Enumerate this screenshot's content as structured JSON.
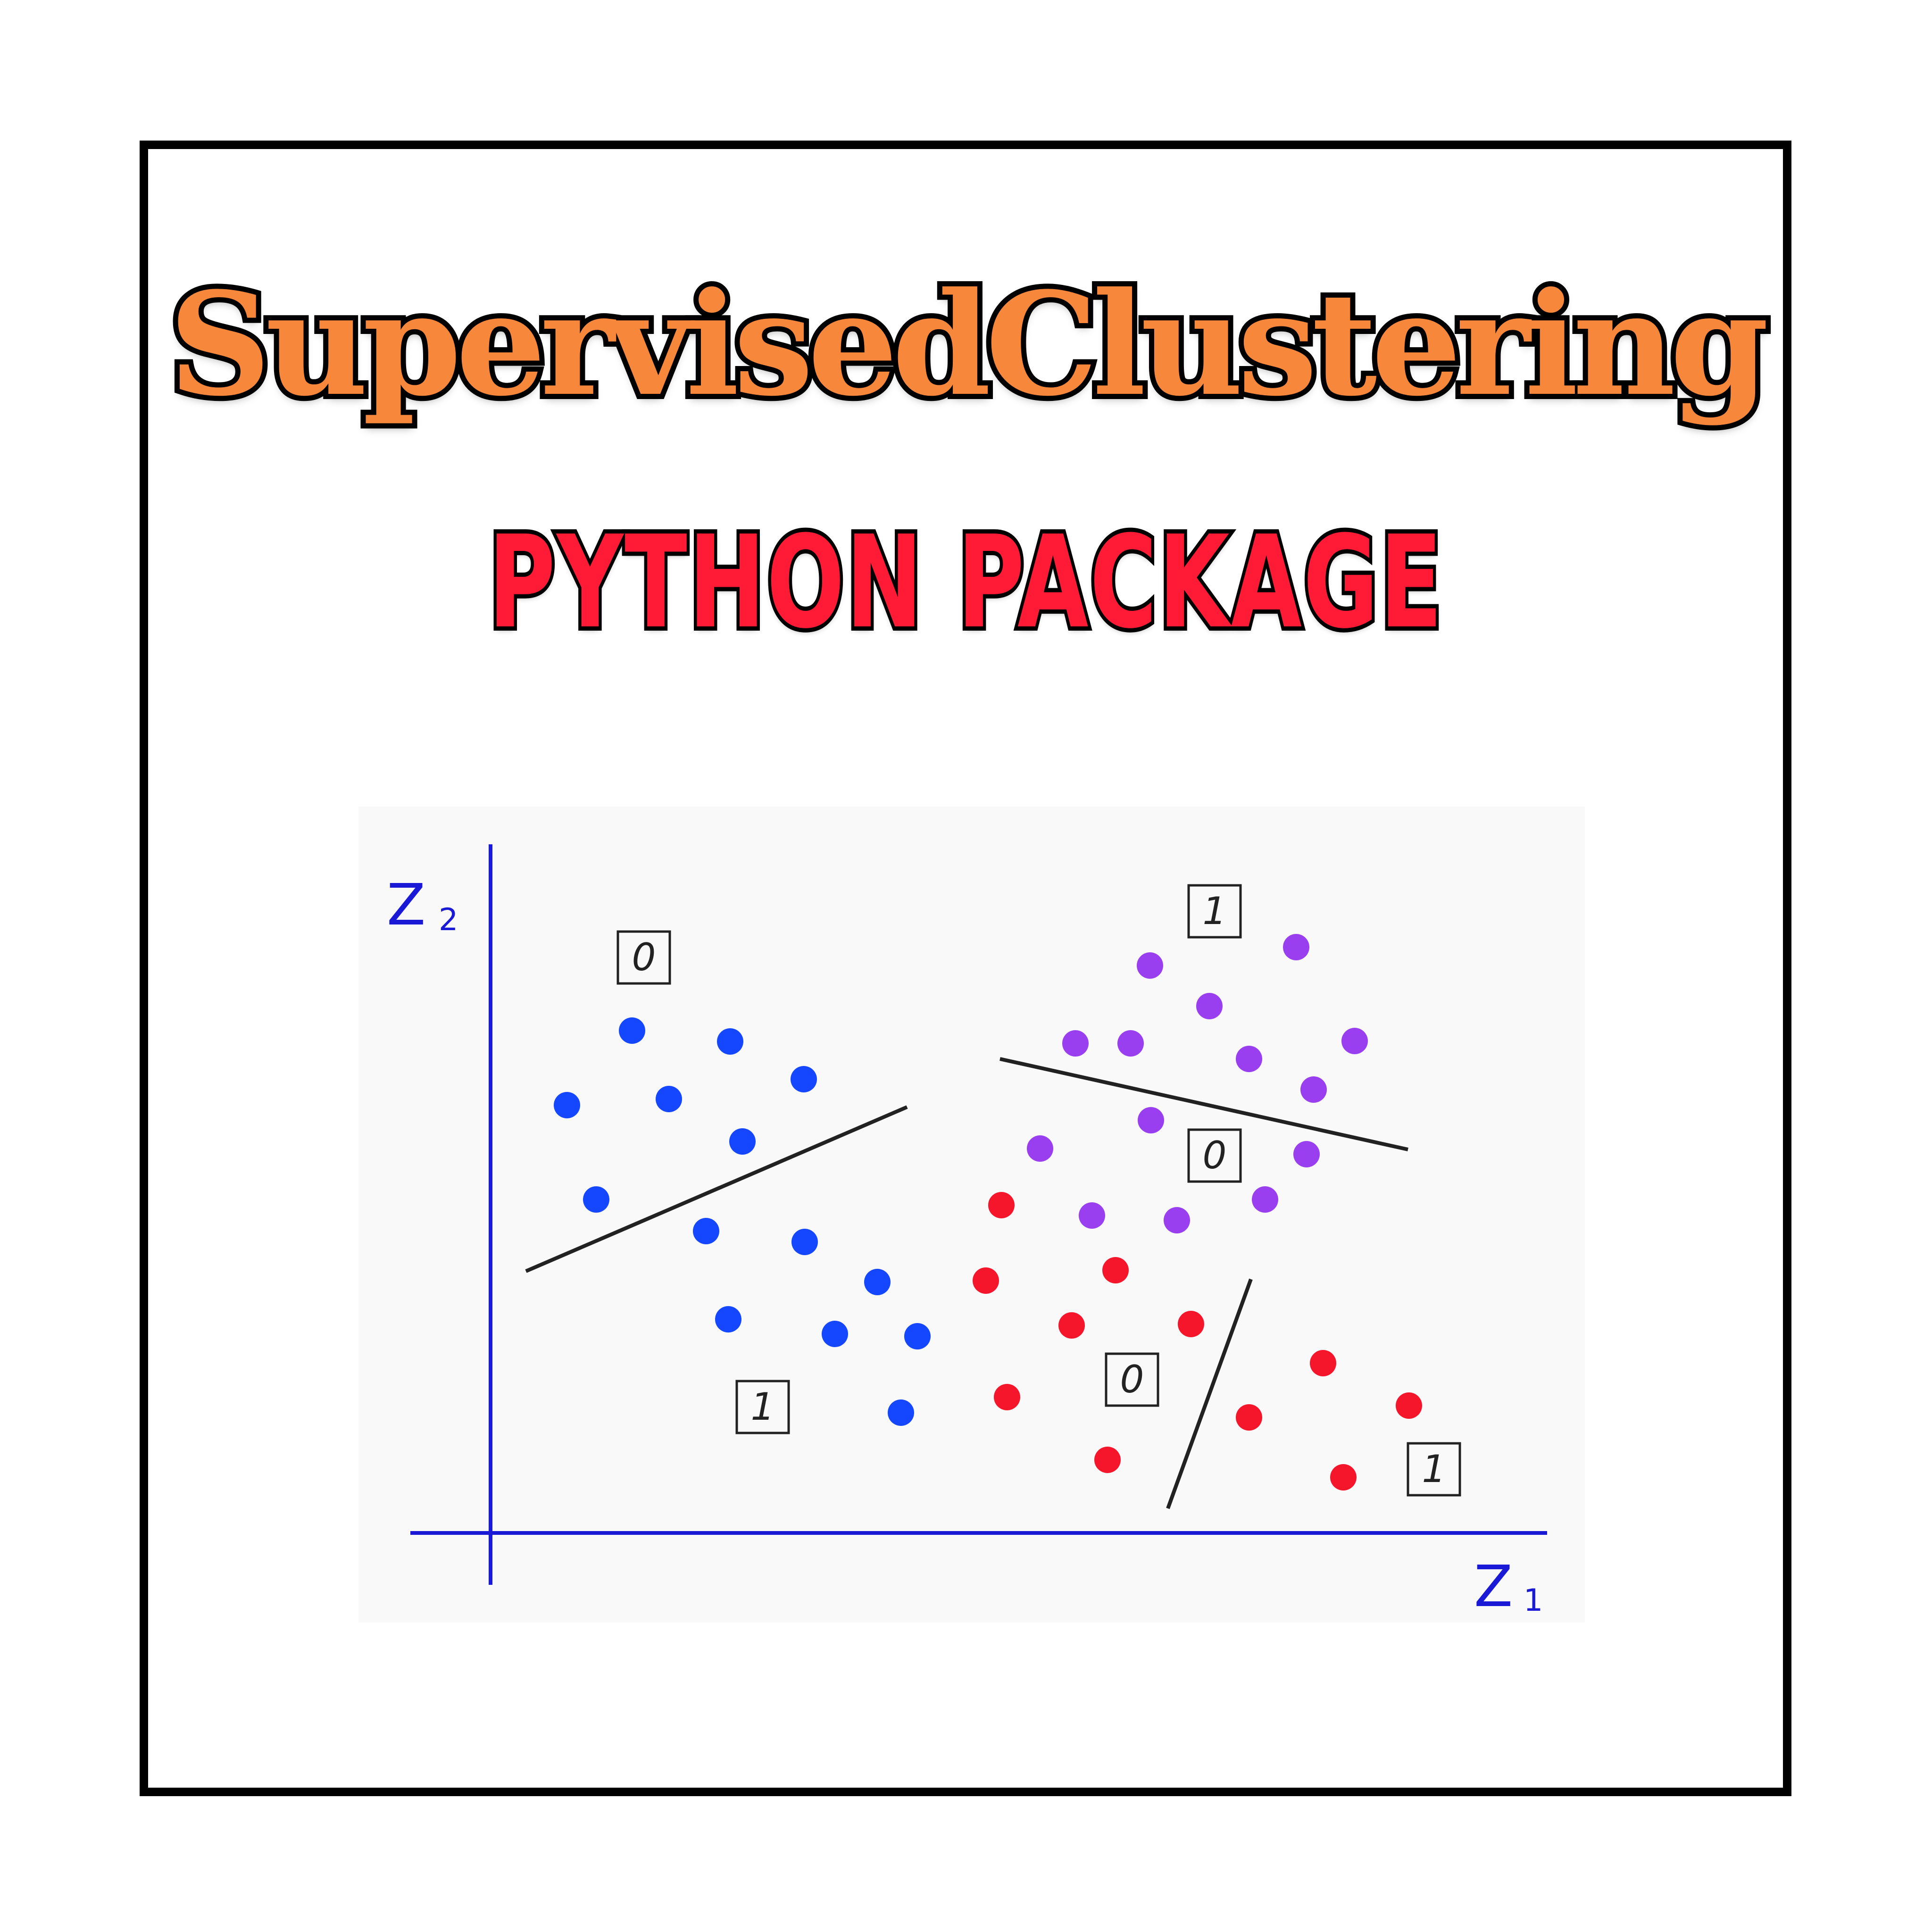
{
  "title": "SupervisedClustering",
  "subtitle": "PYTHON PACKAGE",
  "diagram": {
    "x_axis_label": "Z",
    "x_axis_subscript": "1",
    "y_axis_label": "Z",
    "y_axis_subscript": "2",
    "colors": {
      "blue_cluster": "#1447ff",
      "purple_cluster": "#9a3ff0",
      "red_cluster": "#f5162b",
      "axes": "#1a1ad6",
      "separators": "#222222"
    },
    "region_labels": [
      "0",
      "1",
      "1",
      "0",
      "0",
      "1"
    ]
  }
}
